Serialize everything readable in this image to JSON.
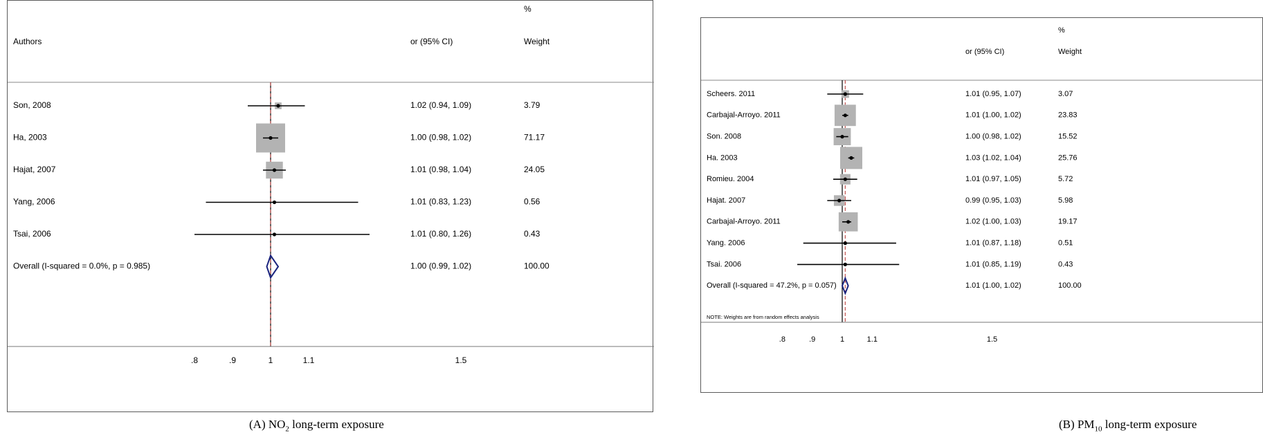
{
  "chart_data": [
    {
      "type": "forest",
      "panel": "A",
      "caption": {
        "prefix": "(A) NO",
        "sub": "2",
        "suffix": " long-term exposure"
      },
      "headers": {
        "authors": "Authors",
        "ci": "or (95% CI)",
        "weight_pct": "%",
        "weight": "Weight"
      },
      "x_ticks": [
        {
          "value": 0.8,
          "label": ".8"
        },
        {
          "value": 0.9,
          "label": ".9"
        },
        {
          "value": 1.0,
          "label": "1"
        },
        {
          "value": 1.1,
          "label": "1.1"
        },
        {
          "value": 1.5,
          "label": "1.5"
        }
      ],
      "reference_line": 1.0,
      "pooled_line": 1.0,
      "studies": [
        {
          "label": "Son, 2008",
          "or": 1.02,
          "lo": 0.94,
          "hi": 1.09,
          "ci_text": "1.02 (0.94, 1.09)",
          "weight": "3.79"
        },
        {
          "label": "Ha, 2003",
          "or": 1.0,
          "lo": 0.98,
          "hi": 1.02,
          "ci_text": "1.00 (0.98, 1.02)",
          "weight": "71.17"
        },
        {
          "label": "Hajat, 2007",
          "or": 1.01,
          "lo": 0.98,
          "hi": 1.04,
          "ci_text": "1.01 (0.98, 1.04)",
          "weight": "24.05"
        },
        {
          "label": "Yang, 2006",
          "or": 1.01,
          "lo": 0.83,
          "hi": 1.23,
          "ci_text": "1.01 (0.83, 1.23)",
          "weight": "0.56"
        },
        {
          "label": "Tsai, 2006",
          "or": 1.01,
          "lo": 0.8,
          "hi": 1.26,
          "ci_text": "1.01 (0.80, 1.26)",
          "weight": "0.43"
        }
      ],
      "overall": {
        "label": "Overall  (I-squared = 0.0%, p = 0.985)",
        "or": 1.0,
        "lo": 0.99,
        "hi": 1.02,
        "ci_text": "1.00 (0.99, 1.02)",
        "weight": "100.00"
      },
      "note": ""
    },
    {
      "type": "forest",
      "panel": "B",
      "caption": {
        "prefix": "(B) PM",
        "sub": "10",
        "suffix": " long-term exposure"
      },
      "headers": {
        "authors": "",
        "ci": "or (95% CI)",
        "weight_pct": "%",
        "weight": "Weight"
      },
      "x_ticks": [
        {
          "value": 0.8,
          "label": ".8"
        },
        {
          "value": 0.9,
          "label": ".9"
        },
        {
          "value": 1.0,
          "label": "1"
        },
        {
          "value": 1.1,
          "label": "1.1"
        },
        {
          "value": 1.5,
          "label": "1.5"
        }
      ],
      "reference_line": 1.0,
      "pooled_line": 1.01,
      "studies": [
        {
          "label": "Scheers. 2011",
          "or": 1.01,
          "lo": 0.95,
          "hi": 1.07,
          "ci_text": "1.01 (0.95, 1.07)",
          "weight": "3.07"
        },
        {
          "label": "Carbajal-Arroyo. 2011",
          "or": 1.01,
          "lo": 1.0,
          "hi": 1.02,
          "ci_text": "1.01 (1.00, 1.02)",
          "weight": "23.83"
        },
        {
          "label": "Son. 2008",
          "or": 1.0,
          "lo": 0.98,
          "hi": 1.02,
          "ci_text": "1.00 (0.98, 1.02)",
          "weight": "15.52"
        },
        {
          "label": "Ha. 2003",
          "or": 1.03,
          "lo": 1.02,
          "hi": 1.04,
          "ci_text": "1.03 (1.02, 1.04)",
          "weight": "25.76"
        },
        {
          "label": "Romieu. 2004",
          "or": 1.01,
          "lo": 0.97,
          "hi": 1.05,
          "ci_text": "1.01 (0.97, 1.05)",
          "weight": "5.72"
        },
        {
          "label": "Hajat. 2007",
          "or": 0.99,
          "lo": 0.95,
          "hi": 1.03,
          "ci_text": "0.99 (0.95, 1.03)",
          "weight": "5.98"
        },
        {
          "label": "Carbajal-Arroyo. 2011",
          "or": 1.02,
          "lo": 1.0,
          "hi": 1.03,
          "ci_text": "1.02 (1.00, 1.03)",
          "weight": "19.17"
        },
        {
          "label": "Yang. 2006",
          "or": 1.01,
          "lo": 0.87,
          "hi": 1.18,
          "ci_text": "1.01 (0.87, 1.18)",
          "weight": "0.51"
        },
        {
          "label": "Tsai. 2006",
          "or": 1.01,
          "lo": 0.85,
          "hi": 1.19,
          "ci_text": "1.01 (0.85, 1.19)",
          "weight": "0.43"
        }
      ],
      "overall": {
        "label": "Overall  (I-squared = 47.2%, p = 0.057)",
        "or": 1.01,
        "lo": 1.0,
        "hi": 1.02,
        "ci_text": "1.01 (1.00, 1.02)",
        "weight": "100.00"
      },
      "note": "NOTE: Weights are from random effects analysis"
    }
  ],
  "colors": {
    "box": "#b3b3b3",
    "line": "#000000",
    "diamond": "#1a237e",
    "pooled": "#c0504d",
    "frame": "#5a5a5a"
  }
}
